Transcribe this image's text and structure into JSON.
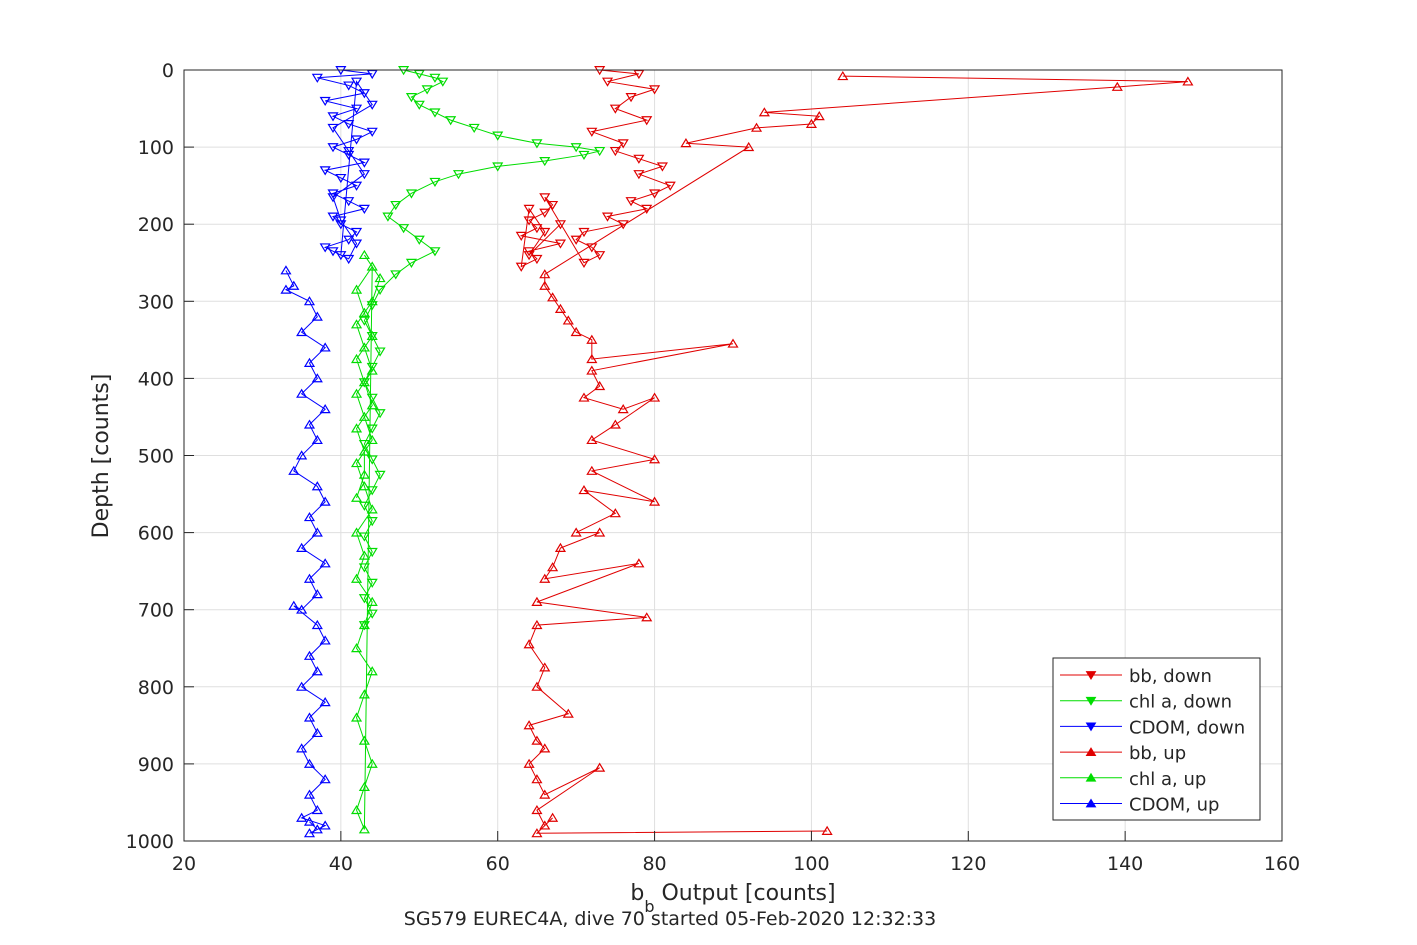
{
  "chart_data": {
    "type": "scatter",
    "title": "",
    "subtitle": "SG579 EUREC4A, dive 70 started 05-Feb-2020 12:32:33",
    "xlabel_main": "b",
    "xlabel_sub": "b",
    "xlabel_rest": " Output [counts]",
    "ylabel": "Depth [counts]",
    "xlim": [
      20,
      160
    ],
    "ylim": [
      0,
      1000
    ],
    "y_reversed": true,
    "grid": true,
    "legend_position": "bottom-right",
    "xticks": [
      "20",
      "40",
      "60",
      "80",
      "100",
      "120",
      "140",
      "160"
    ],
    "yticks": [
      "0",
      "100",
      "200",
      "300",
      "400",
      "500",
      "600",
      "700",
      "800",
      "900",
      "1000"
    ],
    "series": [
      {
        "name": "bb, down",
        "color": "#e00000",
        "marker": "triangle-down",
        "x": [
          73,
          78,
          74,
          80,
          77,
          75,
          79,
          72,
          76,
          75,
          78,
          81,
          78,
          82,
          80,
          77,
          79,
          74,
          76,
          71,
          70,
          72,
          73,
          71,
          66,
          67,
          66,
          64,
          65,
          63,
          68,
          64,
          65,
          63,
          64,
          66,
          64,
          68
        ],
        "y": [
          0,
          5,
          15,
          25,
          35,
          50,
          65,
          80,
          95,
          105,
          115,
          125,
          135,
          150,
          160,
          170,
          180,
          190,
          200,
          210,
          220,
          230,
          240,
          250,
          165,
          175,
          185,
          195,
          205,
          215,
          225,
          235,
          245,
          255,
          180,
          210,
          240,
          200
        ]
      },
      {
        "name": "chl a, down",
        "color": "#00dd00",
        "marker": "triangle-down",
        "x": [
          48,
          50,
          52,
          53,
          51,
          49,
          50,
          52,
          54,
          57,
          60,
          65,
          70,
          73,
          71,
          66,
          60,
          55,
          52,
          49,
          47,
          46,
          48,
          50,
          52,
          49,
          47,
          45,
          44,
          43,
          44,
          45,
          44,
          43,
          44,
          45,
          44,
          43,
          44,
          45,
          44,
          43,
          44,
          43,
          44,
          43,
          44,
          43,
          44,
          43
        ],
        "y": [
          0,
          5,
          10,
          15,
          25,
          35,
          45,
          55,
          65,
          75,
          85,
          95,
          100,
          105,
          110,
          118,
          125,
          135,
          145,
          160,
          175,
          190,
          205,
          220,
          235,
          250,
          265,
          285,
          305,
          325,
          345,
          365,
          385,
          405,
          425,
          445,
          465,
          485,
          505,
          525,
          545,
          565,
          585,
          605,
          625,
          645,
          665,
          685,
          705,
          720
        ]
      },
      {
        "name": "CDOM, down",
        "color": "#0000ff",
        "marker": "triangle-down",
        "x": [
          40,
          44,
          37,
          41,
          43,
          38,
          42,
          39,
          41,
          44,
          42,
          39,
          41,
          43,
          38,
          40,
          42,
          39,
          41,
          43,
          39,
          40,
          42,
          41,
          38,
          40,
          42,
          44,
          39,
          41,
          43,
          39,
          40,
          42,
          41,
          39
        ],
        "y": [
          0,
          5,
          10,
          20,
          30,
          40,
          50,
          60,
          70,
          80,
          90,
          100,
          110,
          120,
          130,
          140,
          150,
          160,
          170,
          180,
          190,
          200,
          210,
          220,
          230,
          240,
          15,
          45,
          75,
          105,
          135,
          165,
          195,
          225,
          245,
          235
        ]
      },
      {
        "name": "bb, up",
        "color": "#e00000",
        "marker": "triangle-up",
        "x": [
          104,
          148,
          139,
          94,
          101,
          100,
          93,
          84,
          92,
          66,
          66,
          67,
          68,
          69,
          70,
          72,
          72,
          90,
          72,
          73,
          71,
          76,
          80,
          75,
          72,
          80,
          72,
          80,
          71,
          75,
          70,
          73,
          68,
          67,
          66,
          78,
          65,
          79,
          65,
          64,
          66,
          65,
          69,
          64,
          65,
          66,
          64,
          65,
          66,
          73,
          65,
          66,
          67,
          65,
          102
        ],
        "y": [
          8,
          15,
          22,
          55,
          60,
          70,
          75,
          95,
          100,
          265,
          280,
          295,
          310,
          325,
          340,
          350,
          375,
          355,
          390,
          410,
          425,
          440,
          425,
          460,
          480,
          505,
          520,
          560,
          545,
          575,
          600,
          600,
          620,
          645,
          660,
          640,
          690,
          710,
          720,
          745,
          775,
          800,
          835,
          850,
          870,
          880,
          900,
          920,
          940,
          905,
          960,
          980,
          970,
          990,
          987
        ]
      },
      {
        "name": "chl a, up",
        "color": "#00dd00",
        "marker": "triangle-up",
        "x": [
          43,
          45,
          44,
          42,
          43,
          44,
          42,
          43,
          44,
          42,
          43,
          44,
          42,
          43,
          42,
          44,
          43,
          42,
          44,
          43,
          42,
          43,
          44,
          43,
          42,
          43,
          44,
          42,
          43,
          44,
          42,
          43,
          44,
          42,
          43,
          43,
          42
        ],
        "y": [
          240,
          270,
          300,
          330,
          360,
          390,
          420,
          450,
          480,
          510,
          540,
          570,
          600,
          630,
          660,
          690,
          720,
          750,
          780,
          810,
          840,
          870,
          900,
          930,
          960,
          985,
          255,
          285,
          315,
          345,
          375,
          405,
          435,
          465,
          495,
          525,
          555
        ]
      },
      {
        "name": "CDOM, up",
        "color": "#0000ff",
        "marker": "triangle-up",
        "x": [
          33,
          34,
          33,
          36,
          37,
          35,
          38,
          36,
          37,
          35,
          38,
          36,
          37,
          35,
          34,
          37,
          38,
          36,
          37,
          35,
          38,
          36,
          37,
          35,
          34,
          37,
          38,
          36,
          37,
          35,
          38,
          36,
          37,
          35,
          36,
          38,
          36,
          37,
          35,
          38,
          36,
          37,
          36
        ],
        "y": [
          260,
          280,
          285,
          300,
          320,
          340,
          360,
          380,
          400,
          420,
          440,
          460,
          480,
          500,
          520,
          540,
          560,
          580,
          600,
          620,
          640,
          660,
          680,
          700,
          695,
          720,
          740,
          760,
          780,
          800,
          820,
          840,
          860,
          880,
          900,
          920,
          940,
          960,
          970,
          980,
          990,
          985,
          975
        ]
      }
    ]
  }
}
